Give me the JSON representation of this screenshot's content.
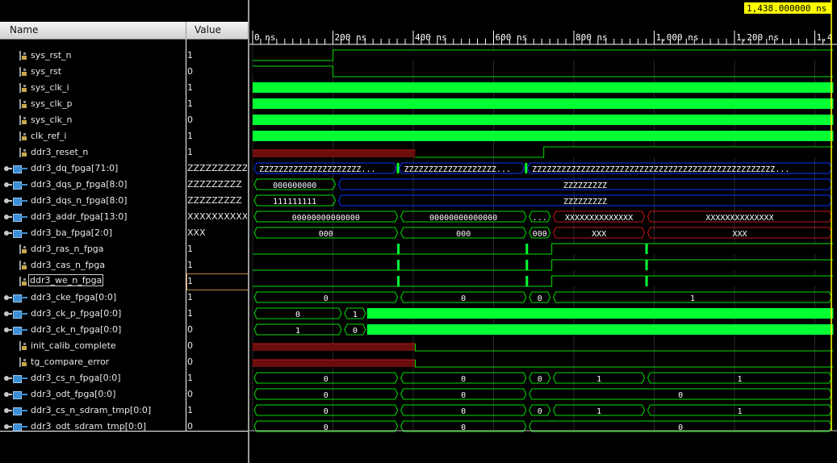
{
  "columns": {
    "name": "Name",
    "value": "Value"
  },
  "cursor_time": "1,438.000000 ns",
  "time_ticks": [
    "0 ns",
    "200 ns",
    "400 ns",
    "600 ns",
    "800 ns",
    "1,000 ns",
    "1,200 ns",
    "1,4"
  ],
  "signals": [
    {
      "name": "sys_rst_n",
      "value": "1",
      "type": "scalar"
    },
    {
      "name": "sys_rst",
      "value": "0",
      "type": "scalar"
    },
    {
      "name": "sys_clk_i",
      "value": "1",
      "type": "scalar"
    },
    {
      "name": "sys_clk_p",
      "value": "1",
      "type": "scalar"
    },
    {
      "name": "sys_clk_n",
      "value": "0",
      "type": "scalar"
    },
    {
      "name": "clk_ref_i",
      "value": "1",
      "type": "scalar"
    },
    {
      "name": "ddr3_reset_n",
      "value": "1",
      "type": "scalar"
    },
    {
      "name": "ddr3_dq_fpga[71:0]",
      "value": "ZZZZZZZZZZZZ",
      "type": "bus"
    },
    {
      "name": "ddr3_dqs_p_fpga[8:0]",
      "value": "ZZZZZZZZZ",
      "type": "bus"
    },
    {
      "name": "ddr3_dqs_n_fpga[8:0]",
      "value": "ZZZZZZZZZ",
      "type": "bus"
    },
    {
      "name": "ddr3_addr_fpga[13:0]",
      "value": "XXXXXXXXXXXX",
      "type": "bus"
    },
    {
      "name": "ddr3_ba_fpga[2:0]",
      "value": "XXX",
      "type": "bus"
    },
    {
      "name": "ddr3_ras_n_fpga",
      "value": "1",
      "type": "scalar"
    },
    {
      "name": "ddr3_cas_n_fpga",
      "value": "1",
      "type": "scalar"
    },
    {
      "name": "ddr3_we_n_fpga",
      "value": "1",
      "type": "scalar",
      "selected": true
    },
    {
      "name": "ddr3_cke_fpga[0:0]",
      "value": "1",
      "type": "bus"
    },
    {
      "name": "ddr3_ck_p_fpga[0:0]",
      "value": "1",
      "type": "bus"
    },
    {
      "name": "ddr3_ck_n_fpga[0:0]",
      "value": "0",
      "type": "bus"
    },
    {
      "name": "init_calib_complete",
      "value": "0",
      "type": "scalar"
    },
    {
      "name": "tg_compare_error",
      "value": "0",
      "type": "scalar"
    },
    {
      "name": "ddr3_cs_n_fpga[0:0]",
      "value": "1",
      "type": "bus"
    },
    {
      "name": "ddr3_odt_fpga[0:0]",
      "value": "0",
      "type": "bus"
    },
    {
      "name": "ddr3_cs_n_sdram_tmp[0:0]",
      "value": "1",
      "type": "bus"
    },
    {
      "name": "ddr3_odt_sdram_tmp[0:0]",
      "value": "0",
      "type": "bus"
    }
  ],
  "waveforms": {
    "ddr3_dq_fpga": [
      "ZZZZZZZZZZZZZZZZZZZZZ...",
      "ZZZZZZZZZZZZZZZZZZZ...",
      "ZZZZZZZZZZZZZZZZZZZZZZZZZZZZZZZZZZZZZZZZZZZZZZZZZZ..."
    ],
    "ddr3_dqs_p_fpga": [
      "000000000",
      "ZZZZZZZZZ"
    ],
    "ddr3_dqs_n_fpga": [
      "111111111",
      "ZZZZZZZZZ"
    ],
    "ddr3_addr_fpga": [
      "00000000000000",
      "00000000000000",
      "...",
      "XXXXXXXXXXXXXX",
      "XXXXXXXXXXXXXX"
    ],
    "ddr3_ba_fpga": [
      "000",
      "000",
      "000",
      "XXX",
      "XXX"
    ],
    "ddr3_cke_fpga": [
      "0",
      "0",
      "0",
      "1"
    ],
    "ddr3_ck_p_fpga": [
      "0",
      "1"
    ],
    "ddr3_ck_n_fpga": [
      "1",
      "0"
    ],
    "ddr3_cs_n_fpga": [
      "0",
      "0",
      "0",
      "1",
      "1"
    ],
    "ddr3_odt_fpga": [
      "0",
      "0",
      "0"
    ],
    "ddr3_cs_n_sdram_tmp": [
      "0",
      "0",
      "0",
      "1",
      "1"
    ],
    "ddr3_odt_sdram_tmp": [
      "0",
      "0",
      "0"
    ]
  },
  "colors": {
    "signal": "#00e000",
    "bright": "#00ff33",
    "high_fill": "#005800",
    "bus_blue": "#0a33ff",
    "error_red": "#c81414",
    "cursor": "#ffff00"
  }
}
